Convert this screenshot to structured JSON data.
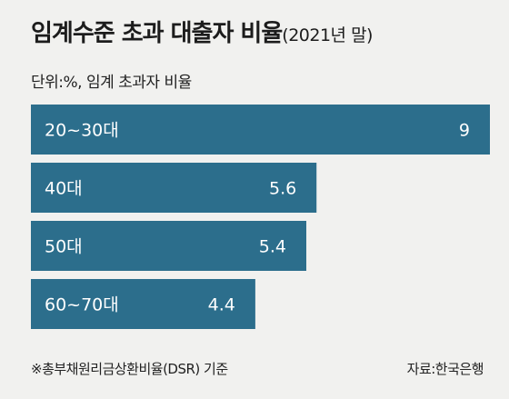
{
  "title": "임계수준 초과 대출자 비율",
  "subtitle": "(2021년 말)",
  "unit_note": "단위:%, 임계 초과자 비율",
  "footnote": "※총부채원리금상환비율(DSR) 기준",
  "source": "자료:한국은행",
  "colors": {
    "bar": "#2c6e8c",
    "label": "#ffffff",
    "background": "#f1f1ef"
  },
  "chart_data": {
    "type": "bar",
    "orientation": "horizontal",
    "categories": [
      "20~30대",
      "40대",
      "50대",
      "60~70대"
    ],
    "values": [
      9,
      5.6,
      5.4,
      4.4
    ],
    "value_labels": [
      "9",
      "5.6",
      "5.4",
      "4.4"
    ],
    "xlim": [
      0,
      9
    ],
    "grid": false,
    "legend": "none"
  }
}
